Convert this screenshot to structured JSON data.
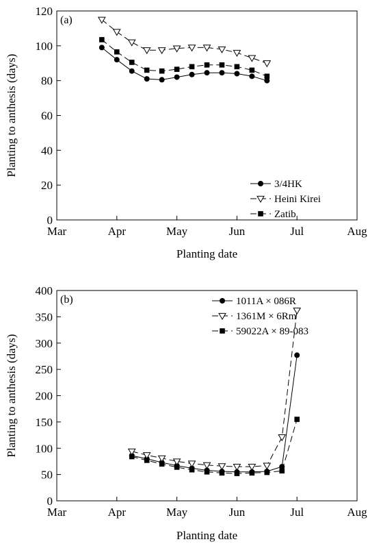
{
  "chart_data": [
    {
      "type": "line",
      "panel_label": "(a)",
      "xlabel": "Planting date",
      "ylabel": "Planting to anthesis (days)",
      "xlim": [
        0,
        5
      ],
      "ylim": [
        0,
        120
      ],
      "x_ticks": [
        "Mar",
        "Apr",
        "May",
        "Jun",
        "Jul",
        "Aug"
      ],
      "y_ticks": [
        "0",
        "20",
        "40",
        "60",
        "80",
        "100",
        "120"
      ],
      "legend_position": "bottom-right",
      "x": [
        0.75,
        1.0,
        1.25,
        1.5,
        1.75,
        2.0,
        2.25,
        2.5,
        2.75,
        3.0,
        3.25,
        3.5,
        3.75
      ],
      "series": [
        {
          "name": "3/4HK",
          "marker": "filled-circle",
          "dash": "solid",
          "values": [
            99,
            92,
            85.5,
            81,
            80.5,
            82,
            83.5,
            84.5,
            84.5,
            84,
            82.5,
            80,
            null
          ]
        },
        {
          "name": "Heini Kirei",
          "marker": "open-triangle-down",
          "dash": "dashed",
          "values": [
            115,
            108,
            102,
            97.5,
            97.5,
            98.5,
            99,
            99,
            98,
            96,
            93,
            90,
            null
          ]
        },
        {
          "name": "Zatib",
          "marker": "filled-square",
          "dash": "dashed",
          "values": [
            103.5,
            96.5,
            90.5,
            86,
            85.5,
            86.5,
            88,
            89,
            89,
            88,
            86,
            82.5,
            null
          ]
        }
      ]
    },
    {
      "type": "line",
      "panel_label": "(b)",
      "xlabel": "Planting date",
      "ylabel": "Planting to anthesis (days)",
      "xlim": [
        0,
        5
      ],
      "ylim": [
        0,
        400
      ],
      "x_ticks": [
        "Mar",
        "Apr",
        "May",
        "Jun",
        "Jul",
        "Aug"
      ],
      "y_ticks": [
        "0",
        "50",
        "100",
        "150",
        "200",
        "250",
        "300",
        "350",
        "400"
      ],
      "legend_position": "top-right",
      "x": [
        1.25,
        1.5,
        1.75,
        2.0,
        2.25,
        2.5,
        2.75,
        3.0,
        3.25,
        3.5,
        3.75,
        4.0,
        4.25,
        4.5,
        4.75
      ],
      "series": [
        {
          "name": "1011A × 086R",
          "marker": "filled-circle",
          "dash": "solid",
          "values": [
            86,
            80,
            73,
            67,
            62,
            58,
            56,
            55,
            55,
            56,
            65,
            277,
            null,
            null,
            null
          ]
        },
        {
          "name": "1361M × 6Rm",
          "marker": "open-triangle-down",
          "dash": "dashed",
          "values": [
            94,
            87,
            81,
            75,
            71,
            68,
            66,
            65,
            65,
            67,
            121,
            362,
            null,
            null,
            null
          ]
        },
        {
          "name": "59022A × 89-083",
          "marker": "filled-square",
          "dash": "dashed",
          "values": [
            84,
            77,
            70,
            64,
            59,
            55,
            53,
            52,
            53,
            54,
            57,
            155,
            null,
            null,
            null
          ]
        }
      ]
    }
  ]
}
